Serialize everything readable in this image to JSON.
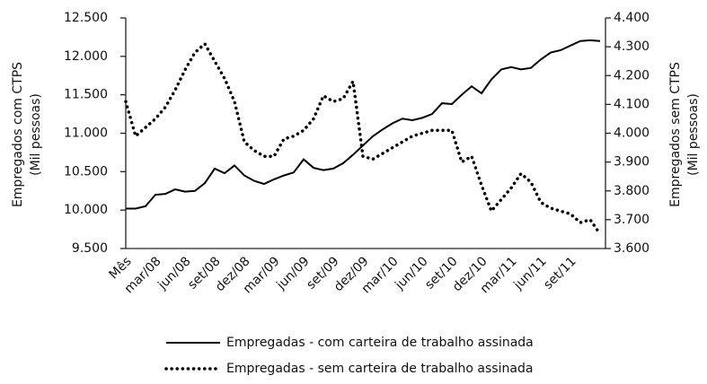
{
  "chart_data": {
    "type": "line",
    "y_label": [
      "Empregados com CTPS",
      "(Mil pessoas)"
    ],
    "y2_label": [
      "Empregados sem CTPS",
      "(Mil pessoas)"
    ],
    "categories": [
      "Mês",
      null,
      null,
      "mar/08",
      null,
      null,
      "jun/08",
      null,
      null,
      "set/08",
      null,
      null,
      "dez/08",
      null,
      null,
      "mar/09",
      null,
      null,
      "jun/09",
      null,
      null,
      "set/09",
      null,
      null,
      "dez/09",
      null,
      null,
      "mar/10",
      null,
      null,
      "jun/10",
      null,
      null,
      "set/10",
      null,
      null,
      "dez/10",
      null,
      null,
      "mar/11",
      null,
      null,
      "jun/11",
      null,
      null,
      "set/11",
      null,
      null,
      null
    ],
    "series": [
      {
        "name": "Empregadas - com carteira de trabalho assinada",
        "color": "#000000",
        "style": "solid",
        "axis": "y",
        "values": [
          10020,
          10020,
          10050,
          10200,
          10210,
          10270,
          10240,
          10250,
          10350,
          10540,
          10480,
          10580,
          10450,
          10380,
          10340,
          10400,
          10450,
          10490,
          10660,
          10550,
          10520,
          10540,
          10610,
          10720,
          10840,
          10960,
          11050,
          11130,
          11190,
          11170,
          11200,
          11250,
          11390,
          11380,
          11500,
          11610,
          11520,
          11700,
          11830,
          11860,
          11830,
          11850,
          11960,
          12050,
          12080,
          12140,
          12200,
          12210,
          12200
        ]
      },
      {
        "name": "Empregadas - sem carteira de trabalho assinada",
        "color": "#000000",
        "style": "dotted",
        "axis": "y2",
        "values": [
          4110,
          3990,
          4020,
          4050,
          4090,
          4150,
          4220,
          4280,
          4310,
          4250,
          4190,
          4110,
          3970,
          3940,
          3920,
          3920,
          3980,
          3990,
          4010,
          4050,
          4130,
          4110,
          4120,
          4180,
          3920,
          3910,
          3930,
          3950,
          3970,
          3990,
          4000,
          4010,
          4010,
          4010,
          3900,
          3920,
          3820,
          3730,
          3770,
          3810,
          3860,
          3830,
          3760,
          3740,
          3730,
          3720,
          3690,
          3700,
          3650
        ]
      }
    ],
    "ylim": [
      9500,
      12500
    ],
    "yticks": [
      {
        "value": 9500,
        "label": "9.500"
      },
      {
        "value": 10000,
        "label": "10.000"
      },
      {
        "value": 10500,
        "label": "10.500"
      },
      {
        "value": 11000,
        "label": "11.000"
      },
      {
        "value": 11500,
        "label": "11.500"
      },
      {
        "value": 12000,
        "label": "12.000"
      },
      {
        "value": 12500,
        "label": "12.500"
      }
    ],
    "y2lim": [
      3600,
      4400
    ],
    "y2ticks": [
      {
        "value": 3600,
        "label": "3.600"
      },
      {
        "value": 3700,
        "label": "3.700"
      },
      {
        "value": 3800,
        "label": "3.800"
      },
      {
        "value": 3900,
        "label": "3.900"
      },
      {
        "value": 4000,
        "label": "4.000"
      },
      {
        "value": 4100,
        "label": "4.100"
      },
      {
        "value": 4200,
        "label": "4.200"
      },
      {
        "value": 4300,
        "label": "4.300"
      },
      {
        "value": 4400,
        "label": "4.400"
      }
    ],
    "grid": false,
    "legend": "bottom"
  }
}
